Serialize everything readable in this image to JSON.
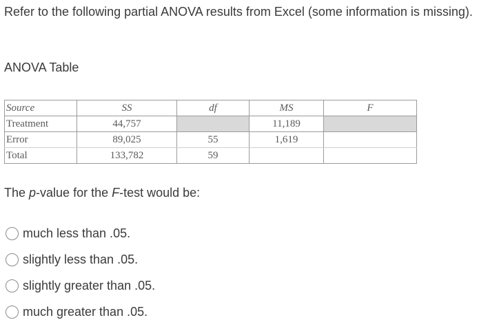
{
  "intro_text": "Refer to the following partial ANOVA results from Excel (some information is missing).",
  "table_title": "ANOVA Table",
  "anova": {
    "headers": {
      "source": "Source",
      "ss": "SS",
      "df": "df",
      "ms": "MS",
      "f": "F"
    },
    "rows": [
      {
        "source": "Treatment",
        "ss": "44,757",
        "df": "",
        "ms": "11,189",
        "f": ""
      },
      {
        "source": "Error",
        "ss": "89,025",
        "df": "55",
        "ms": "1,619",
        "f": ""
      },
      {
        "source": "Total",
        "ss": "133,782",
        "df": "59",
        "ms": "",
        "f": ""
      }
    ],
    "shaded_color": "#d9d9d9"
  },
  "question": {
    "before_p": "The ",
    "p": "p",
    "middle": "-value for the ",
    "f": "F",
    "after": "-test would be:"
  },
  "options": [
    "much less than .05.",
    "slightly less than .05.",
    "slightly greater than .05.",
    "much greater than .05."
  ]
}
